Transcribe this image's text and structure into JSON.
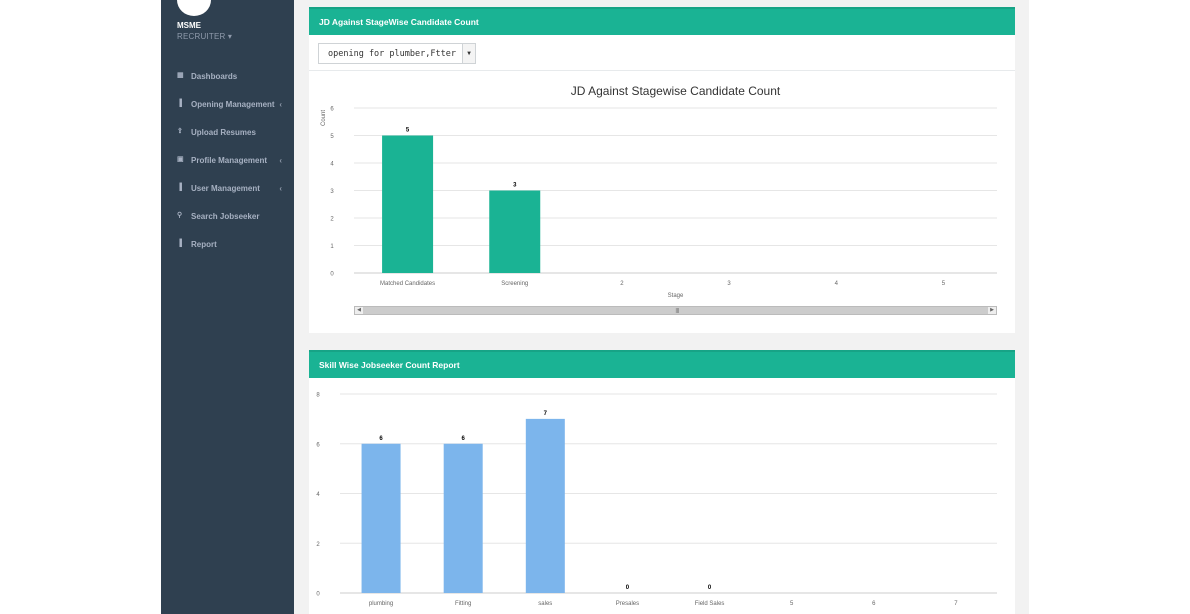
{
  "sidebar": {
    "brand": "MSME",
    "role": "RECRUITER",
    "role_caret": "▾",
    "items": [
      {
        "label": "Dashboards",
        "icon": "grid-icon",
        "glyph": "▦",
        "arrow": ""
      },
      {
        "label": "Opening Management",
        "icon": "bar-chart-icon",
        "glyph": "▐",
        "arrow": "‹"
      },
      {
        "label": "Upload Resumes",
        "icon": "upload-icon",
        "glyph": "⇪",
        "arrow": ""
      },
      {
        "label": "Profile Management",
        "icon": "profile-icon",
        "glyph": "▣",
        "arrow": "‹"
      },
      {
        "label": "User Management",
        "icon": "bar-chart-icon",
        "glyph": "▐",
        "arrow": "‹"
      },
      {
        "label": "Search Jobseeker",
        "icon": "search-icon",
        "glyph": "⚲",
        "arrow": ""
      },
      {
        "label": "Report",
        "icon": "bar-chart-icon",
        "glyph": "▐",
        "arrow": ""
      }
    ]
  },
  "panel1": {
    "title": "JD Against StageWise Candidate Count",
    "select_value": "opening for plumber,Ftter"
  },
  "panel2": {
    "title": "Skill Wise Jobseeker Count Report"
  },
  "colors": {
    "accent": "#1ab394",
    "bar2": "#7cb5ec"
  },
  "chart_data": [
    {
      "type": "bar",
      "title": "JD Against Stagewise Candidate Count",
      "xlabel": "Stage",
      "ylabel": "Count",
      "categories": [
        "Matched Candidates",
        "Screening",
        "2",
        "3",
        "4",
        "5"
      ],
      "values": [
        5,
        3,
        null,
        null,
        null,
        null
      ],
      "yticks": [
        0,
        1,
        2,
        3,
        4,
        5,
        6
      ],
      "ylim": [
        0,
        6
      ],
      "grid": true,
      "color": "#1ab394"
    },
    {
      "type": "bar",
      "title": "",
      "xlabel": "",
      "ylabel": "",
      "categories": [
        "plumbing",
        "Fitting",
        "sales",
        "Presales",
        "Field Sales",
        "5",
        "6",
        "7"
      ],
      "values": [
        6,
        6,
        7,
        0,
        0,
        null,
        null,
        null
      ],
      "yticks": [
        0,
        2,
        4,
        6,
        8
      ],
      "ylim": [
        0,
        8
      ],
      "grid": true,
      "color": "#7cb5ec"
    }
  ]
}
